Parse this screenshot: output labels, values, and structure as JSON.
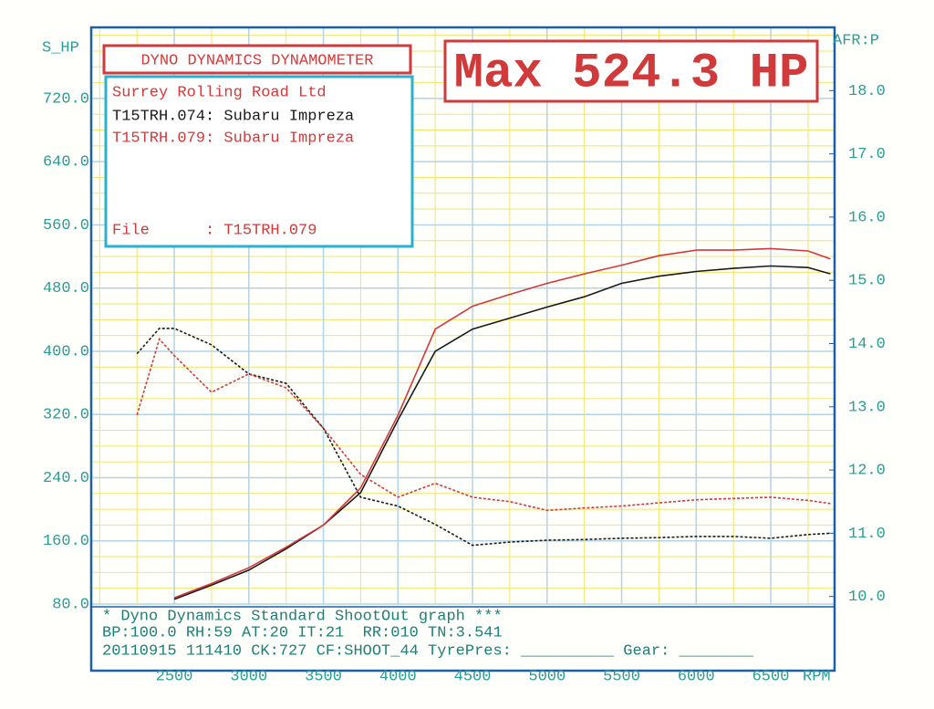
{
  "chart_data": {
    "type": "line",
    "title": "DYNO DYNAMICS DYNAMOMETER",
    "headline": "Max 524.3 HP",
    "ylabel": "S_HP",
    "y2label": "AFR:P",
    "xlabel": "RPM",
    "info": [
      "Surrey Rolling Road Ltd",
      "File      : T15TRH.079"
    ],
    "footer": [
      "* Dyno Dynamics Standard ShootOut graph ***",
      "BP:100.0 RH:59 AT:20 IT:21  RR:010 TN:3.541",
      "20110915 111410 CK:727 CF:SHOOT_44 TyrePres: __________ Gear: ________"
    ],
    "x": [
      2250,
      2400,
      2500,
      2750,
      3000,
      3250,
      3500,
      3750,
      4000,
      4250,
      4500,
      4750,
      5000,
      5250,
      5500,
      5750,
      6000,
      6250,
      6500,
      6750,
      6900
    ],
    "xlim": [
      1943,
      6928
    ],
    "xticks": [
      2500,
      3000,
      3500,
      4000,
      4500,
      5000,
      5500,
      6000,
      6500
    ],
    "ylim": [
      80,
      810
    ],
    "yticks": [
      {
        "value": 80,
        "label": "80.0"
      },
      {
        "value": 160,
        "label": "160.0"
      },
      {
        "value": 240,
        "label": "240.0"
      },
      {
        "value": 320,
        "label": "320.0"
      },
      {
        "value": 400,
        "label": "400.0"
      },
      {
        "value": 480,
        "label": "480.0"
      },
      {
        "value": 560,
        "label": "560.0"
      },
      {
        "value": 640,
        "label": "640.0"
      },
      {
        "value": 720,
        "label": "720.0"
      }
    ],
    "y2lim": [
      9.88,
      19.0
    ],
    "y2ticks": [
      {
        "value": 10,
        "label": "10.0"
      },
      {
        "value": 11,
        "label": "11.0"
      },
      {
        "value": 12,
        "label": "12.0"
      },
      {
        "value": 13,
        "label": "13.0"
      },
      {
        "value": 14,
        "label": "14.0"
      },
      {
        "value": 15,
        "label": "15.0"
      },
      {
        "value": 16,
        "label": "16.0"
      },
      {
        "value": 17,
        "label": "17.0"
      },
      {
        "value": 18,
        "label": "18.0"
      }
    ],
    "grid": true,
    "series": [
      {
        "name": "T15TRH.074: Subaru Impreza",
        "color": "#1a1a1a",
        "values": [
          null,
          null,
          86,
          104,
          123,
          150,
          180,
          221,
          313,
          400,
          428,
          442,
          456,
          469,
          486,
          495,
          501,
          505,
          508,
          506,
          498
        ]
      },
      {
        "name": "T15TRH.079: Subaru Impreza",
        "color": "#d03a3a",
        "values": [
          null,
          null,
          88,
          106,
          126,
          152,
          180,
          227,
          319,
          428,
          457,
          472,
          486,
          498,
          509,
          521,
          528,
          528,
          530,
          527,
          517
        ]
      },
      {
        "color": "#1a1a1a",
        "axis": "y2",
        "dashed": true,
        "values": [
          13.84,
          14.24,
          14.24,
          13.98,
          13.52,
          13.37,
          12.66,
          11.57,
          11.43,
          11.14,
          10.81,
          10.86,
          10.89,
          10.9,
          10.92,
          10.93,
          10.95,
          10.95,
          10.92,
          10.98,
          11.0
        ]
      },
      {
        "color": "#d03a3a",
        "axis": "y2",
        "dashed": true,
        "values": [
          12.87,
          14.07,
          13.81,
          13.23,
          13.52,
          13.3,
          12.66,
          11.93,
          11.57,
          11.79,
          11.57,
          11.5,
          11.36,
          11.4,
          11.43,
          11.48,
          11.53,
          11.55,
          11.57,
          11.52,
          11.47
        ]
      }
    ]
  }
}
